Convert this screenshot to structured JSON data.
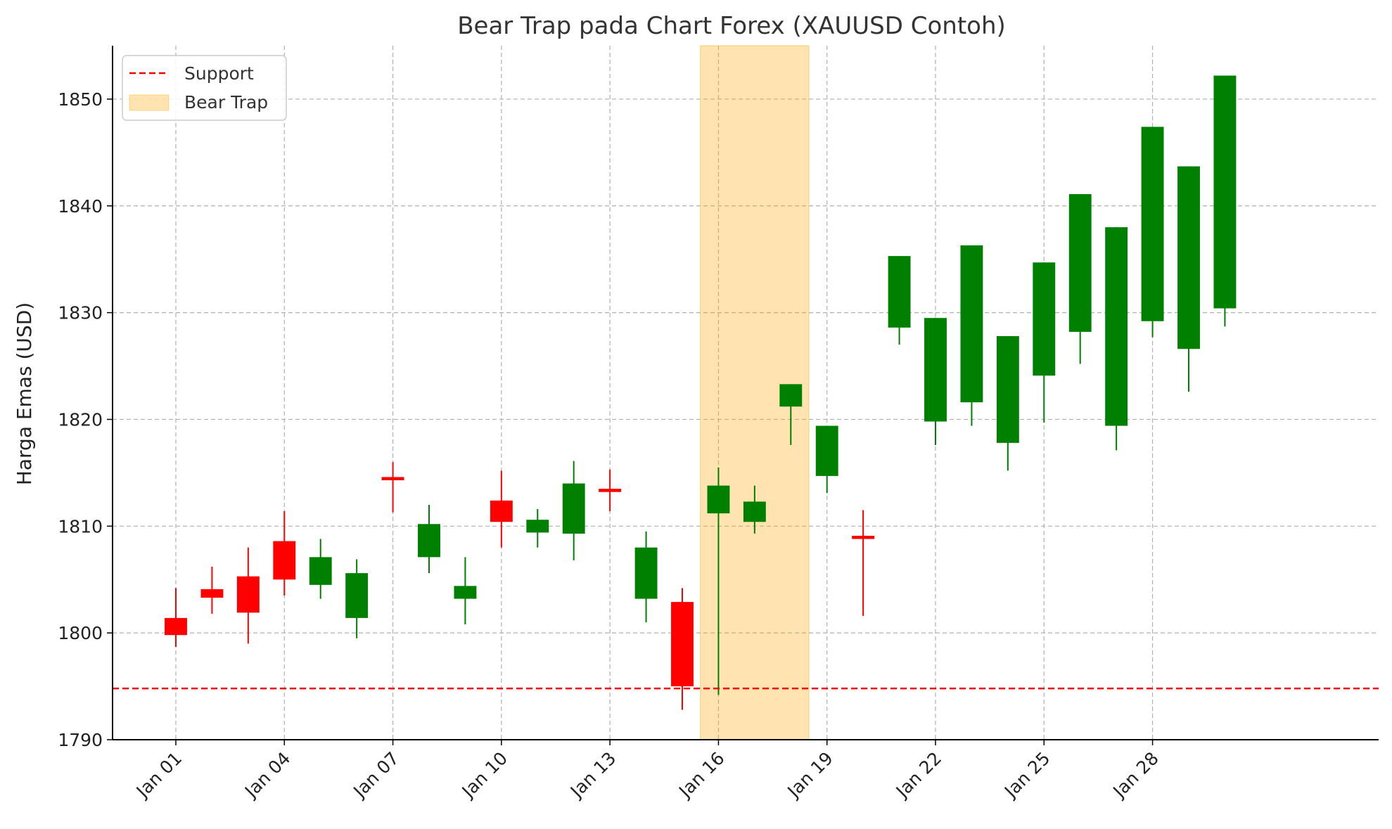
{
  "chart_data": {
    "type": "candlestick",
    "title": "Bear Trap pada Chart Forex (XAUUSD Contoh)",
    "xlabel": "",
    "ylabel": "Harga Emas (USD)",
    "ylim": [
      1790,
      1855
    ],
    "yticks": [
      1790,
      1800,
      1810,
      1820,
      1830,
      1840,
      1850
    ],
    "xlim_days": [
      -1.75,
      33.25
    ],
    "xticks": [
      "Jan 01",
      "Jan 04",
      "Jan 07",
      "Jan 10",
      "Jan 13",
      "Jan 16",
      "Jan 19",
      "Jan 22",
      "Jan 25",
      "Jan 28"
    ],
    "grid": true,
    "legend_position": "top-left",
    "support": {
      "name": "Support",
      "value": 1794.8,
      "color": "#ff0000"
    },
    "bear_trap": {
      "name": "Bear Trap",
      "start": "Jan 16",
      "end": "Jan 18",
      "color": "#ffa500"
    },
    "colors": {
      "up": "#008000",
      "down": "#ff0000"
    },
    "candles": [
      {
        "date": "Jan 01",
        "open": 1799.8,
        "high": 1804.2,
        "low": 1798.7,
        "close": 1801.4,
        "color": "red"
      },
      {
        "date": "Jan 02",
        "open": 1803.3,
        "high": 1806.2,
        "low": 1801.8,
        "close": 1804.1,
        "color": "red"
      },
      {
        "date": "Jan 03",
        "open": 1801.9,
        "high": 1808.0,
        "low": 1799.0,
        "close": 1805.3,
        "color": "red"
      },
      {
        "date": "Jan 04",
        "open": 1805.0,
        "high": 1811.4,
        "low": 1803.5,
        "close": 1808.6,
        "color": "red"
      },
      {
        "date": "Jan 05",
        "open": 1807.1,
        "high": 1808.8,
        "low": 1803.2,
        "close": 1804.5,
        "color": "green"
      },
      {
        "date": "Jan 06",
        "open": 1805.6,
        "high": 1806.9,
        "low": 1799.5,
        "close": 1801.4,
        "color": "green"
      },
      {
        "date": "Jan 07",
        "open": 1814.3,
        "high": 1816.0,
        "low": 1811.3,
        "close": 1814.6,
        "color": "red"
      },
      {
        "date": "Jan 08",
        "open": 1810.2,
        "high": 1812.0,
        "low": 1805.6,
        "close": 1807.1,
        "color": "green"
      },
      {
        "date": "Jan 09",
        "open": 1804.4,
        "high": 1807.1,
        "low": 1800.8,
        "close": 1803.2,
        "color": "green"
      },
      {
        "date": "Jan 10",
        "open": 1810.4,
        "high": 1815.2,
        "low": 1808.0,
        "close": 1812.4,
        "color": "red"
      },
      {
        "date": "Jan 11",
        "open": 1810.6,
        "high": 1811.6,
        "low": 1808.0,
        "close": 1809.4,
        "color": "green"
      },
      {
        "date": "Jan 12",
        "open": 1814.0,
        "high": 1816.1,
        "low": 1806.8,
        "close": 1809.3,
        "color": "green"
      },
      {
        "date": "Jan 13",
        "open": 1813.2,
        "high": 1815.3,
        "low": 1811.4,
        "close": 1813.5,
        "color": "red"
      },
      {
        "date": "Jan 14",
        "open": 1808.0,
        "high": 1809.5,
        "low": 1801.0,
        "close": 1803.2,
        "color": "green"
      },
      {
        "date": "Jan 15",
        "open": 1795.0,
        "high": 1804.2,
        "low": 1792.8,
        "close": 1802.9,
        "color": "red"
      },
      {
        "date": "Jan 16",
        "open": 1813.8,
        "high": 1815.5,
        "low": 1794.2,
        "close": 1811.2,
        "color": "green"
      },
      {
        "date": "Jan 17",
        "open": 1812.3,
        "high": 1813.8,
        "low": 1809.3,
        "close": 1810.4,
        "color": "green"
      },
      {
        "date": "Jan 18",
        "open": 1823.3,
        "high": 1823.3,
        "low": 1817.6,
        "close": 1821.2,
        "color": "green"
      },
      {
        "date": "Jan 19",
        "open": 1819.4,
        "high": 1819.4,
        "low": 1813.1,
        "close": 1814.7,
        "color": "green"
      },
      {
        "date": "Jan 20",
        "open": 1808.8,
        "high": 1811.5,
        "low": 1801.6,
        "close": 1809.1,
        "color": "red"
      },
      {
        "date": "Jan 21",
        "open": 1835.3,
        "high": 1835.3,
        "low": 1827.0,
        "close": 1828.6,
        "color": "green"
      },
      {
        "date": "Jan 22",
        "open": 1829.5,
        "high": 1829.5,
        "low": 1817.6,
        "close": 1819.8,
        "color": "green"
      },
      {
        "date": "Jan 23",
        "open": 1836.3,
        "high": 1836.3,
        "low": 1819.4,
        "close": 1821.6,
        "color": "green"
      },
      {
        "date": "Jan 24",
        "open": 1827.8,
        "high": 1827.8,
        "low": 1815.2,
        "close": 1817.8,
        "color": "green"
      },
      {
        "date": "Jan 25",
        "open": 1834.7,
        "high": 1834.7,
        "low": 1819.7,
        "close": 1824.1,
        "color": "green"
      },
      {
        "date": "Jan 26",
        "open": 1841.1,
        "high": 1841.1,
        "low": 1825.2,
        "close": 1828.2,
        "color": "green"
      },
      {
        "date": "Jan 27",
        "open": 1838.0,
        "high": 1838.0,
        "low": 1817.1,
        "close": 1819.4,
        "color": "green"
      },
      {
        "date": "Jan 28",
        "open": 1847.4,
        "high": 1847.4,
        "low": 1827.7,
        "close": 1829.2,
        "color": "green"
      },
      {
        "date": "Jan 29",
        "open": 1843.7,
        "high": 1843.7,
        "low": 1822.6,
        "close": 1826.6,
        "color": "green"
      },
      {
        "date": "Jan 30",
        "open": 1852.2,
        "high": 1852.2,
        "low": 1828.7,
        "close": 1830.4,
        "color": "green"
      }
    ]
  }
}
